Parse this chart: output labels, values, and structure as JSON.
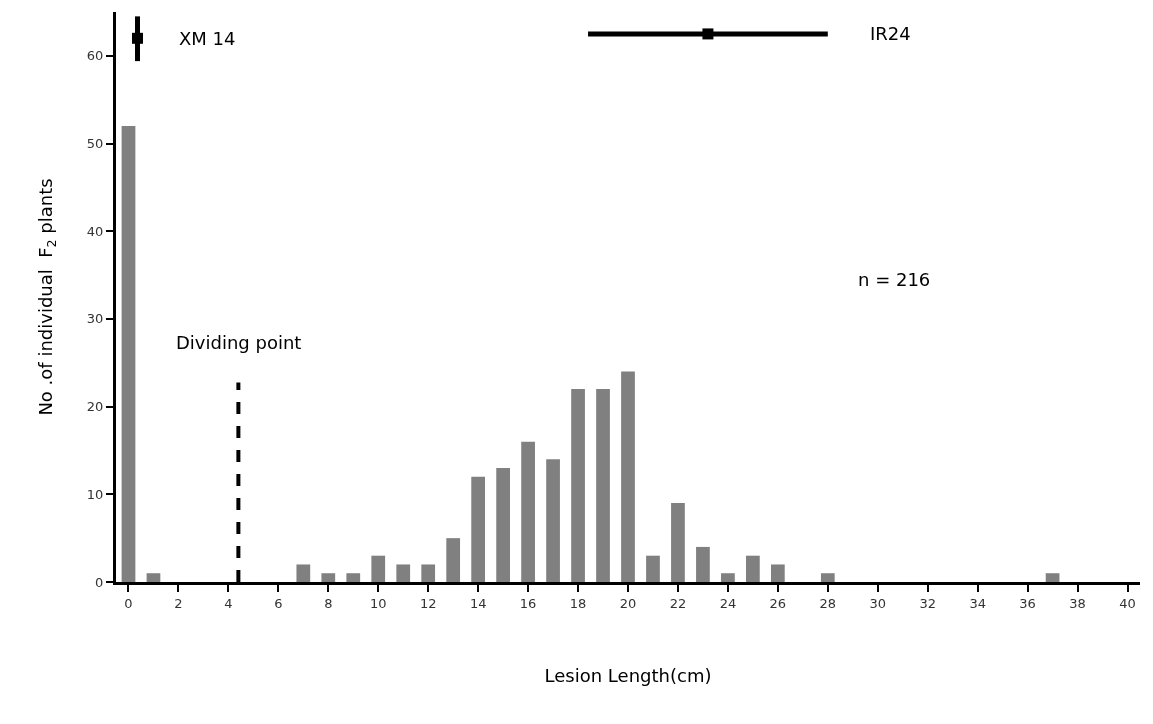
{
  "chart_data": {
    "type": "bar",
    "x": [
      0,
      1,
      2,
      3,
      4,
      5,
      6,
      7,
      8,
      9,
      10,
      11,
      12,
      13,
      14,
      15,
      16,
      17,
      18,
      19,
      20,
      21,
      22,
      23,
      24,
      25,
      26,
      27,
      28,
      29,
      30,
      31,
      32,
      33,
      34,
      35,
      36,
      37,
      38,
      39,
      40
    ],
    "series": [
      {
        "color": "#808080",
        "values": [
          52,
          1,
          0,
          0,
          0,
          0,
          0,
          2,
          1,
          1,
          3,
          2,
          2,
          5,
          12,
          13,
          16,
          14,
          22,
          22,
          24,
          3,
          9,
          4,
          1,
          3,
          2,
          0,
          1,
          0,
          0,
          0,
          0,
          0,
          0,
          0,
          0,
          1,
          0,
          0,
          0
        ]
      },
      {
        "type": "scatter",
        "name": "XM 14",
        "color": "#000000",
        "x": [
          0.36
        ],
        "values": [
          62
        ],
        "errors": [
          [
            59.4,
            64.5
          ]
        ],
        "marker": "square"
      },
      {
        "type": "scatter",
        "name": "IR24",
        "color": "#000000",
        "x": [
          23.2
        ],
        "values": [
          62.5
        ],
        "xerrors": [
          [
            18.4,
            28.0
          ]
        ],
        "marker": "square"
      }
    ],
    "xlabel": "Lesion Length(cm)",
    "ylabel": "No .of individual  F$_{2}$ plants",
    "xlim": [
      -0.5,
      40.5
    ],
    "xticks": [
      0,
      2,
      4,
      6,
      8,
      10,
      12,
      14,
      16,
      18,
      20,
      22,
      24,
      26,
      28,
      30,
      32,
      34,
      36,
      38,
      40
    ],
    "ylim": [
      0,
      65
    ],
    "yticks": [
      0,
      10,
      20,
      30,
      40,
      50,
      60
    ],
    "ref_lines": [
      {
        "axis": "x",
        "value": 4.4,
        "label": "Dividing point",
        "color": "#000000",
        "line_style": "dashed"
      }
    ],
    "annotations": [
      "n = 216"
    ]
  }
}
